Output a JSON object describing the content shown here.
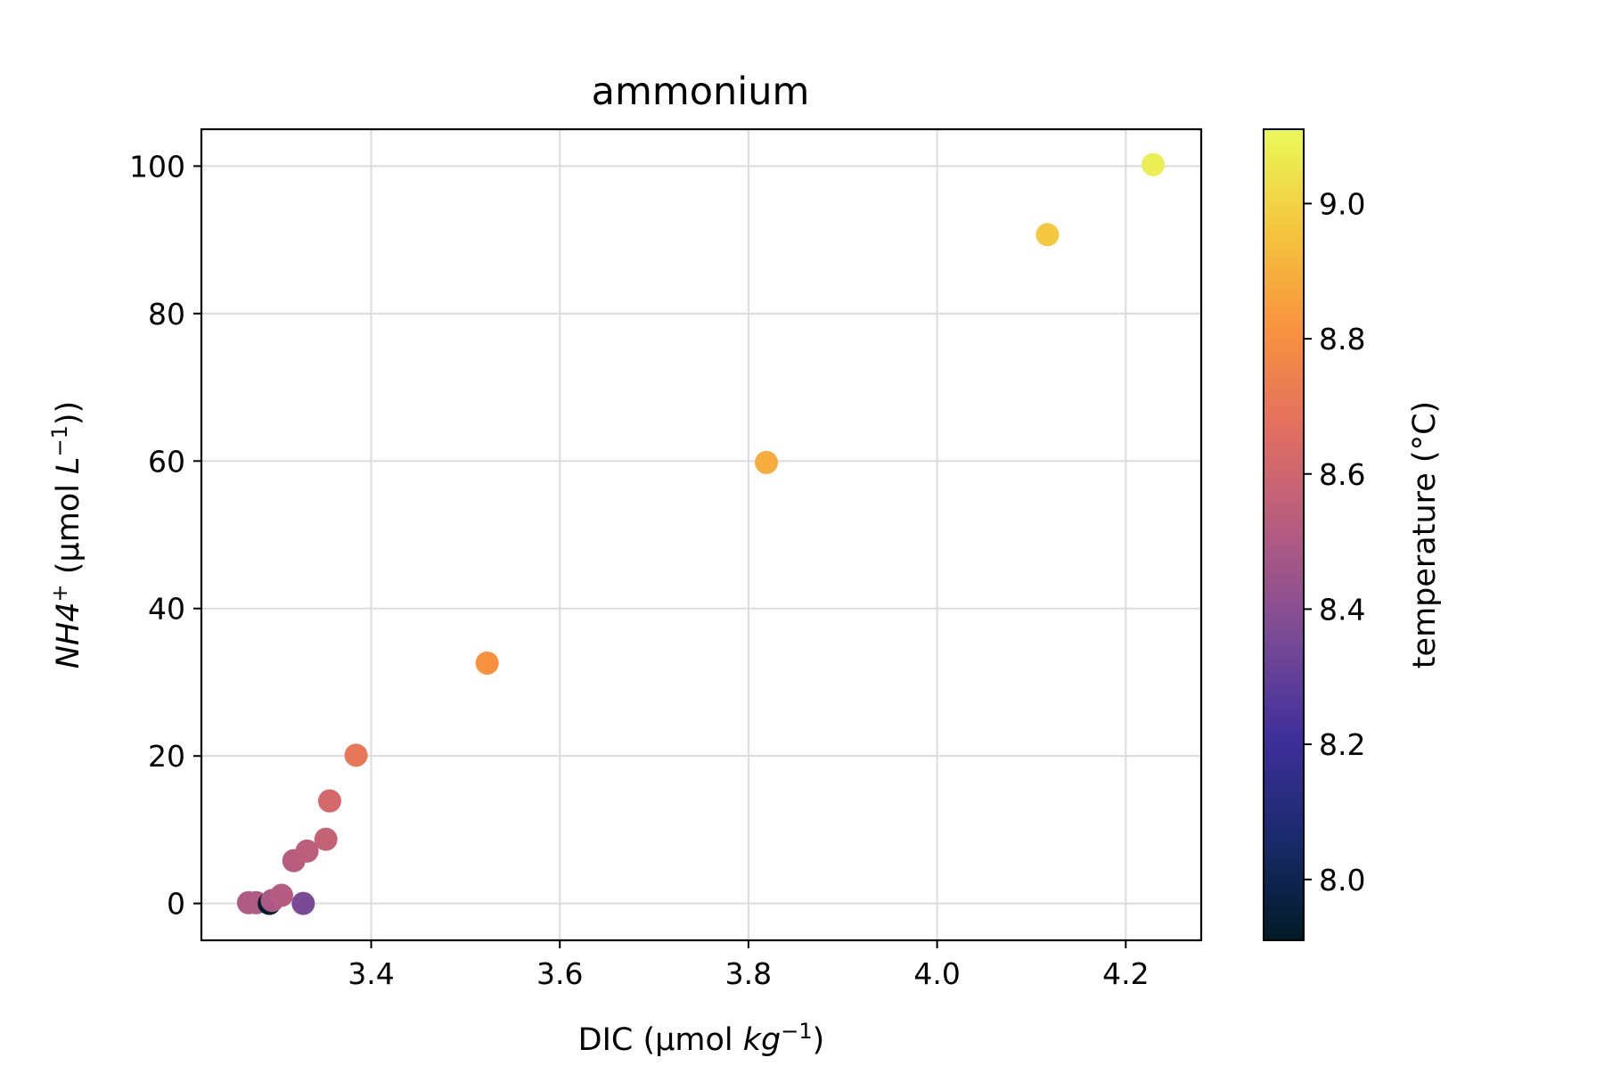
{
  "chart_data": {
    "type": "scatter",
    "title": "ammonium",
    "xlabel": {
      "prefix": "DIC (μmol ",
      "italic": "kg",
      "sup": "−1",
      "suffix": ")"
    },
    "ylabel": {
      "italic": "NH4",
      "sup1": "+",
      "middle": " (μmol ",
      "italic2": "L",
      "sup2": "−1",
      "suffix": "))"
    },
    "xlim": [
      3.22,
      4.28
    ],
    "ylim": [
      -5,
      105
    ],
    "xticks": [
      3.4,
      3.6,
      3.8,
      4.0,
      4.2
    ],
    "xtick_labels": [
      "3.4",
      "3.6",
      "3.8",
      "4.0",
      "4.2"
    ],
    "yticks": [
      0,
      20,
      40,
      60,
      80,
      100
    ],
    "ytick_labels": [
      "0",
      "20",
      "40",
      "60",
      "80",
      "100"
    ],
    "grid": true,
    "colorbar": {
      "label": "temperature (°C)",
      "range": [
        7.91,
        9.11
      ],
      "ticks": [
        8.0,
        8.2,
        8.4,
        8.6,
        8.8,
        9.0
      ],
      "tick_labels": [
        "8.0",
        "8.2",
        "8.4",
        "8.6",
        "8.8",
        "9.0"
      ],
      "colormap": "plasma-like",
      "stops": [
        "#001b25",
        "#1a2a6c",
        "#3f2f9a",
        "#7a4a96",
        "#b25b82",
        "#e06d62",
        "#f8913f",
        "#f5c53d",
        "#e9f95a"
      ]
    },
    "points": [
      {
        "x": 3.27,
        "y": 0.1,
        "c": 8.51
      },
      {
        "x": 3.278,
        "y": 0.1,
        "c": 8.5
      },
      {
        "x": 3.292,
        "y": 0.0,
        "c": 7.93
      },
      {
        "x": 3.295,
        "y": 0.4,
        "c": 8.49
      },
      {
        "x": 3.305,
        "y": 1.1,
        "c": 8.52
      },
      {
        "x": 3.328,
        "y": 0.0,
        "c": 8.36
      },
      {
        "x": 3.318,
        "y": 5.8,
        "c": 8.53
      },
      {
        "x": 3.332,
        "y": 7.1,
        "c": 8.54
      },
      {
        "x": 3.352,
        "y": 8.7,
        "c": 8.57
      },
      {
        "x": 3.356,
        "y": 13.9,
        "c": 8.62
      },
      {
        "x": 3.384,
        "y": 20.1,
        "c": 8.7
      },
      {
        "x": 3.523,
        "y": 32.6,
        "c": 8.81
      },
      {
        "x": 3.819,
        "y": 59.8,
        "c": 8.89
      },
      {
        "x": 4.117,
        "y": 90.7,
        "c": 8.97
      },
      {
        "x": 4.229,
        "y": 100.2,
        "c": 9.08
      }
    ]
  }
}
